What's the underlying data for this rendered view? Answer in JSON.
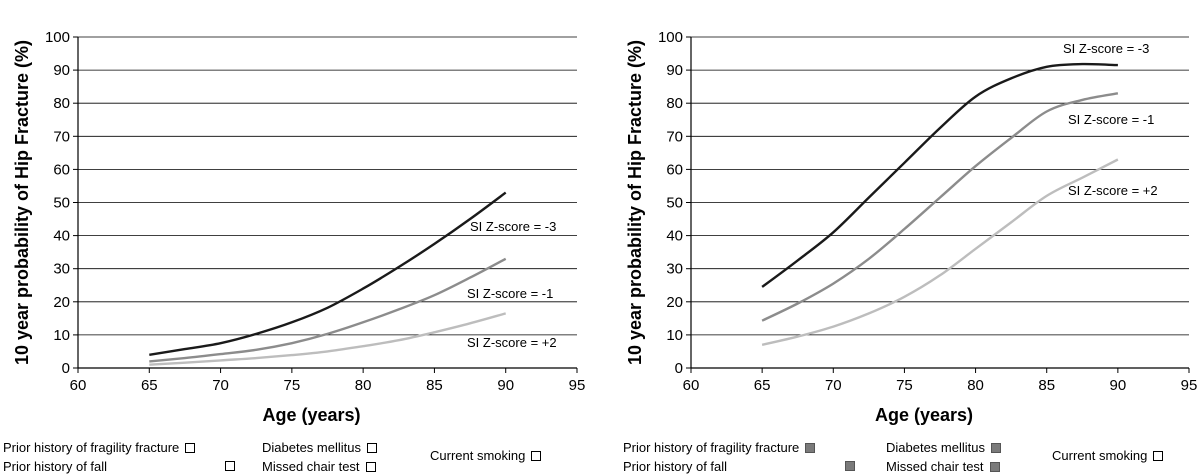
{
  "chart_data": [
    {
      "type": "line",
      "xlabel": "Age (years)",
      "ylabel": "10 year probability of Hip Fracture (%)",
      "xlim": [
        60,
        95
      ],
      "ylim": [
        0,
        100
      ],
      "x_ticks": [
        "60",
        "65",
        "70",
        "75",
        "80",
        "85",
        "90",
        "95"
      ],
      "y_ticks": [
        "0",
        "10",
        "20",
        "30",
        "40",
        "50",
        "60",
        "70",
        "80",
        "90",
        "100"
      ],
      "grid": "horizontal",
      "x": [
        65,
        67.5,
        70,
        72.5,
        75,
        77.5,
        80,
        82.5,
        85,
        87.5,
        90
      ],
      "series": [
        {
          "name": "SI Z-score = -3",
          "color": "#1a1a1a",
          "values": [
            4,
            5.7,
            7.5,
            10.3,
            13.8,
            18.2,
            24,
            30.5,
            37.5,
            45,
            53
          ]
        },
        {
          "name": "SI Z-score = -1",
          "color": "#8c8c8c",
          "values": [
            2,
            3,
            4.2,
            5.5,
            7.5,
            10.3,
            13.8,
            17.7,
            22,
            27.3,
            33
          ]
        },
        {
          "name": "SI Z-score = +2",
          "color": "#bdbdbd",
          "values": [
            1,
            1.6,
            2.3,
            3,
            3.9,
            5,
            6.6,
            8.4,
            10.8,
            13.5,
            16.5
          ]
        }
      ]
    },
    {
      "type": "line",
      "xlabel": "Age (years)",
      "ylabel": "10 year probability of Hip Fracture (%)",
      "xlim": [
        60,
        95
      ],
      "ylim": [
        0,
        100
      ],
      "x_ticks": [
        "60",
        "65",
        "70",
        "75",
        "80",
        "85",
        "90",
        "95"
      ],
      "y_ticks": [
        "0",
        "10",
        "20",
        "30",
        "40",
        "50",
        "60",
        "70",
        "80",
        "90",
        "100"
      ],
      "grid": "horizontal",
      "x": [
        65,
        67.5,
        70,
        72.5,
        75,
        77.5,
        80,
        82.5,
        85,
        87.5,
        90
      ],
      "series": [
        {
          "name": "SI Z-score = -3",
          "color": "#1a1a1a",
          "values": [
            24.5,
            32.5,
            41,
            51.5,
            62,
            72.5,
            82,
            87.5,
            91,
            91.8,
            91.5
          ]
        },
        {
          "name": "SI Z-score = -1",
          "color": "#8c8c8c",
          "values": [
            14.3,
            19.5,
            25.5,
            33,
            42,
            51.5,
            61,
            69.5,
            77.5,
            81,
            83
          ]
        },
        {
          "name": "SI Z-score = +2",
          "color": "#bdbdbd",
          "values": [
            7,
            9.5,
            12.5,
            16.5,
            21.5,
            28,
            36,
            44,
            52,
            57.5,
            63
          ]
        }
      ]
    }
  ],
  "legends": [
    {
      "items": [
        {
          "label": "Prior history of fragility fracture",
          "checked": false
        },
        {
          "label": "Prior history of fall",
          "checked": false
        },
        {
          "label": "Diabetes mellitus",
          "checked": false
        },
        {
          "label": "Missed chair test",
          "checked": false
        },
        {
          "label": "Current smoking",
          "checked": false
        }
      ]
    },
    {
      "items": [
        {
          "label": "Prior history of fragility fracture",
          "checked": true
        },
        {
          "label": "Prior history of fall",
          "checked": true
        },
        {
          "label": "Diabetes mellitus",
          "checked": true
        },
        {
          "label": "Missed chair test",
          "checked": true
        },
        {
          "label": "Current smoking",
          "checked": false
        }
      ]
    }
  ]
}
